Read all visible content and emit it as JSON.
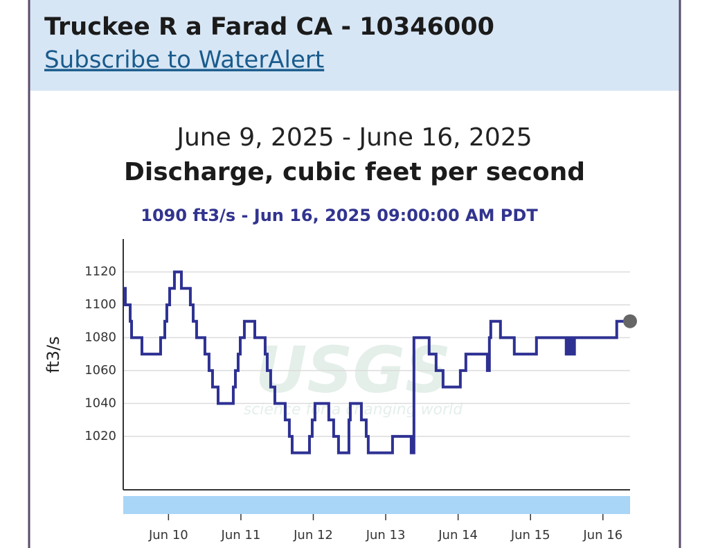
{
  "header": {
    "title": "Truckee R a Farad CA - 10346000",
    "link": "Subscribe to WaterAlert"
  },
  "chart_data": {
    "type": "line",
    "subtitle": "June 9, 2025 - June 16, 2025",
    "title": "Discharge, cubic feet per second",
    "annotation": "1090 ft3/s - Jun 16, 2025 09:00:00 AM PDT",
    "ylabel": "ft3/s",
    "watermark": [
      "USGS",
      "science for a changing world"
    ],
    "step": true,
    "xlim": [
      9.375,
      16.375
    ],
    "xticks": [
      {
        "value": 10,
        "label": "Jun 10"
      },
      {
        "value": 11,
        "label": "Jun 11"
      },
      {
        "value": 12,
        "label": "Jun 12"
      },
      {
        "value": 13,
        "label": "Jun 13"
      },
      {
        "value": 14,
        "label": "Jun 14"
      },
      {
        "value": 15,
        "label": "Jun 15"
      },
      {
        "value": 16,
        "label": "Jun 16"
      }
    ],
    "ylim": [
      987.5,
      1140
    ],
    "yticks": [
      1020,
      1040,
      1060,
      1080,
      1100,
      1120
    ],
    "grid": true,
    "series": [
      {
        "name": "Discharge",
        "color": "#2e3192",
        "x": [
          9.375,
          9.404,
          9.471,
          9.49,
          9.633,
          9.891,
          9.949,
          9.977,
          10.016,
          10.082,
          10.178,
          10.302,
          10.341,
          10.388,
          10.503,
          10.56,
          10.608,
          10.685,
          10.895,
          10.924,
          10.962,
          10.991,
          11.048,
          11.192,
          11.335,
          11.364,
          11.411,
          11.469,
          11.612,
          11.669,
          11.708,
          11.947,
          11.985,
          12.023,
          12.214,
          12.281,
          12.348,
          12.492,
          12.511,
          12.664,
          12.731,
          12.759,
          13.094,
          13.352,
          13.39,
          13.6,
          13.696,
          13.792,
          14.031,
          14.107,
          14.404,
          14.432,
          14.451,
          14.585,
          14.776,
          15.082,
          15.493,
          15.531,
          15.569,
          15.607,
          16.191,
          16.375
        ],
        "values": [
          1110,
          1100,
          1090,
          1080,
          1070,
          1080,
          1090,
          1100,
          1110,
          1120,
          1110,
          1100,
          1090,
          1080,
          1070,
          1060,
          1050,
          1040,
          1050,
          1060,
          1070,
          1080,
          1090,
          1080,
          1070,
          1060,
          1050,
          1040,
          1030,
          1020,
          1010,
          1020,
          1030,
          1040,
          1030,
          1020,
          1010,
          1030,
          1040,
          1030,
          1020,
          1010,
          1020,
          1010,
          1080,
          1070,
          1060,
          1050,
          1060,
          1070,
          1060,
          1080,
          1090,
          1080,
          1070,
          1080,
          1070,
          1080,
          1070,
          1080,
          1090,
          1090
        ]
      }
    ]
  }
}
